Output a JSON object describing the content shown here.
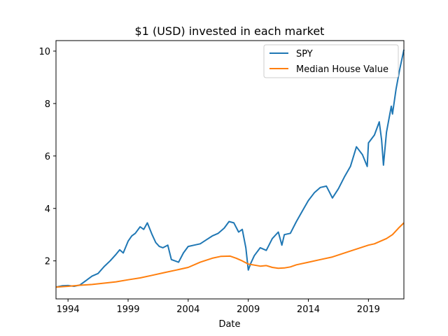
{
  "chart_data": {
    "type": "line",
    "title": "$1 (USD) invested in each market",
    "xlabel": "Date",
    "ylabel": "",
    "xlim": [
      1993.0,
      2021.95
    ],
    "ylim": [
      0.55,
      10.4
    ],
    "x_ticks": [
      1994,
      1999,
      2004,
      2009,
      2014,
      2019
    ],
    "x_tick_labels": [
      "1994",
      "1999",
      "2004",
      "2009",
      "2014",
      "2019"
    ],
    "y_ticks": [
      2,
      4,
      6,
      8,
      10
    ],
    "y_tick_labels": [
      "2",
      "4",
      "6",
      "8",
      "10"
    ],
    "grid": false,
    "legend_position": "top-right",
    "series": [
      {
        "name": "SPY",
        "color": "#1f77b4",
        "x": [
          1993.0,
          1993.5,
          1994.0,
          1994.5,
          1995.0,
          1995.5,
          1996.0,
          1996.5,
          1997.0,
          1997.5,
          1998.0,
          1998.3,
          1998.6,
          1999.0,
          1999.3,
          1999.6,
          2000.0,
          2000.3,
          2000.6,
          2001.0,
          2001.3,
          2001.6,
          2001.9,
          2002.3,
          2002.6,
          2002.9,
          2003.2,
          2003.6,
          2004.0,
          2004.5,
          2005.0,
          2005.5,
          2006.0,
          2006.5,
          2007.0,
          2007.4,
          2007.8,
          2008.2,
          2008.5,
          2008.8,
          2009.0,
          2009.2,
          2009.5,
          2010.0,
          2010.5,
          2011.0,
          2011.5,
          2011.8,
          2012.0,
          2012.5,
          2013.0,
          2013.5,
          2014.0,
          2014.5,
          2015.0,
          2015.5,
          2016.0,
          2016.5,
          2017.0,
          2017.5,
          2018.0,
          2018.5,
          2018.9,
          2019.0,
          2019.5,
          2019.9,
          2020.1,
          2020.25,
          2020.5,
          2020.9,
          2021.0,
          2021.3,
          2021.6,
          2021.95
        ],
        "values": [
          1.0,
          1.05,
          1.06,
          1.03,
          1.08,
          1.25,
          1.42,
          1.52,
          1.78,
          2.0,
          2.25,
          2.42,
          2.3,
          2.75,
          2.95,
          3.05,
          3.3,
          3.2,
          3.45,
          3.0,
          2.7,
          2.55,
          2.5,
          2.6,
          2.05,
          2.0,
          1.95,
          2.3,
          2.55,
          2.6,
          2.65,
          2.8,
          2.95,
          3.05,
          3.25,
          3.5,
          3.45,
          3.1,
          3.2,
          2.5,
          1.65,
          1.9,
          2.2,
          2.5,
          2.4,
          2.85,
          3.1,
          2.6,
          3.0,
          3.05,
          3.5,
          3.9,
          4.3,
          4.6,
          4.8,
          4.85,
          4.4,
          4.75,
          5.2,
          5.6,
          6.35,
          6.05,
          5.6,
          6.5,
          6.8,
          7.3,
          6.6,
          5.65,
          6.9,
          7.9,
          7.6,
          8.55,
          9.3,
          10.05
        ]
      },
      {
        "name": "Median House Value",
        "color": "#ff7f0e",
        "x": [
          1993.0,
          1994.0,
          1995.0,
          1996.0,
          1997.0,
          1998.0,
          1999.0,
          2000.0,
          2001.0,
          2002.0,
          2003.0,
          2004.0,
          2005.0,
          2006.0,
          2006.7,
          2007.5,
          2008.0,
          2008.5,
          2009.0,
          2010.0,
          2010.5,
          2011.0,
          2011.5,
          2012.0,
          2012.5,
          2013.0,
          2014.0,
          2015.0,
          2016.0,
          2017.0,
          2018.0,
          2019.0,
          2019.5,
          2020.0,
          2020.5,
          2021.0,
          2021.5,
          2021.95
        ],
        "values": [
          1.0,
          1.03,
          1.07,
          1.1,
          1.15,
          1.2,
          1.28,
          1.35,
          1.45,
          1.55,
          1.65,
          1.75,
          1.95,
          2.1,
          2.17,
          2.18,
          2.1,
          2.0,
          1.88,
          1.8,
          1.82,
          1.75,
          1.72,
          1.73,
          1.77,
          1.85,
          1.95,
          2.05,
          2.15,
          2.3,
          2.45,
          2.6,
          2.65,
          2.75,
          2.85,
          3.0,
          3.25,
          3.45
        ]
      }
    ]
  }
}
